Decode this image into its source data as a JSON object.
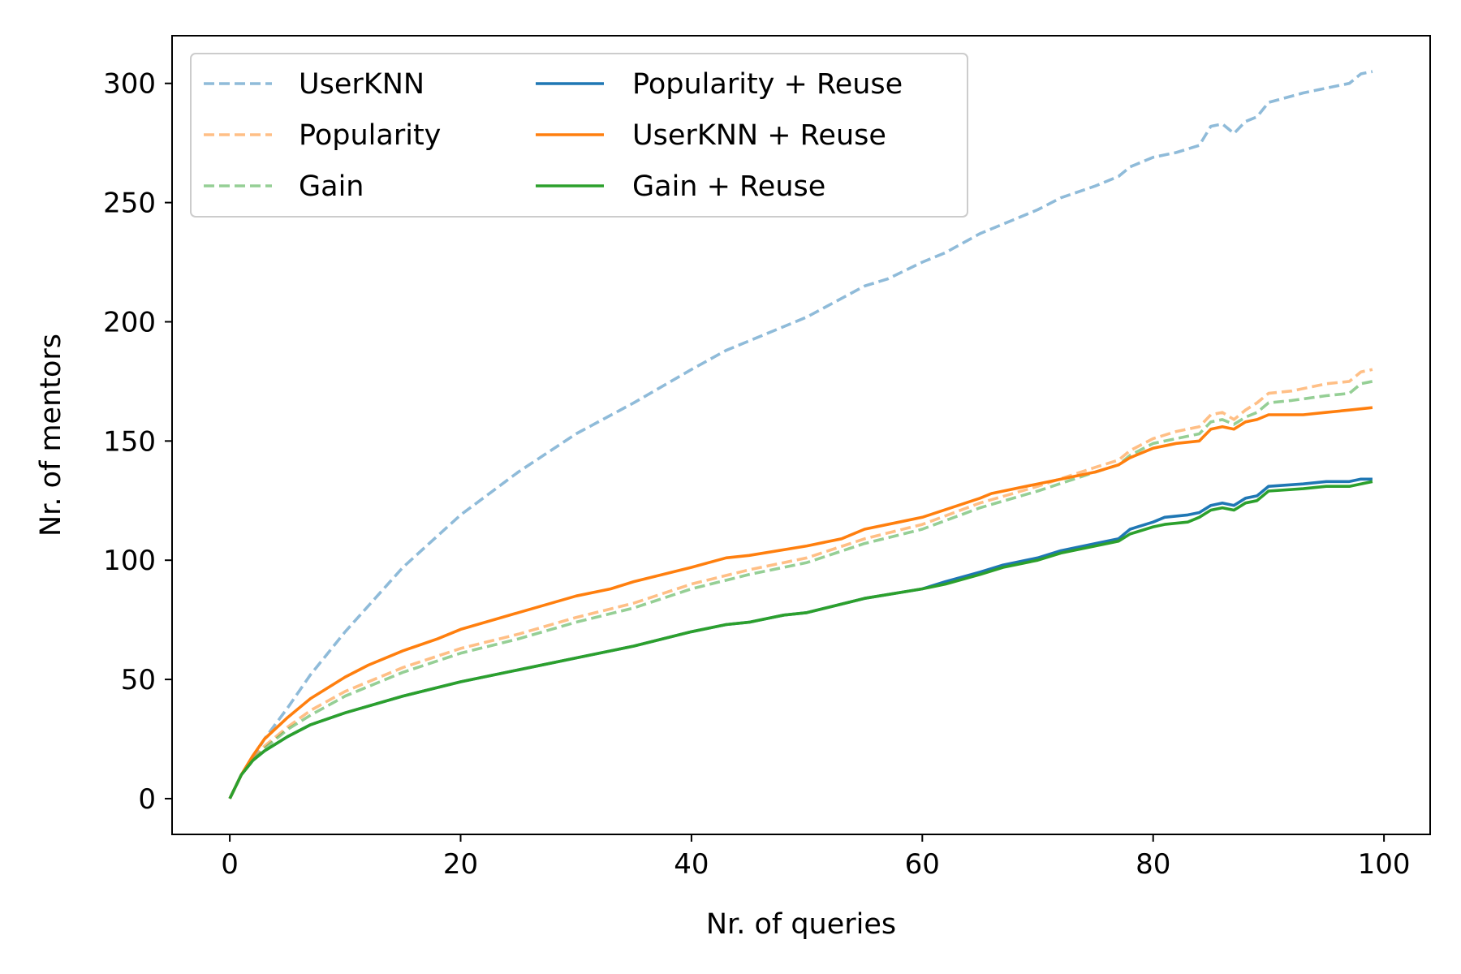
{
  "chart_data": {
    "type": "line",
    "title": "",
    "xlabel": "Nr. of queries",
    "ylabel": "Nr. of mentors",
    "xlim": [
      -5,
      104
    ],
    "ylim": [
      -15,
      320
    ],
    "xticks": [
      0,
      20,
      40,
      60,
      80,
      100
    ],
    "yticks": [
      0,
      50,
      100,
      150,
      200,
      250,
      300
    ],
    "grid": false,
    "legend_position": "top-left",
    "legend_columns": 2,
    "series": [
      {
        "name": "UserKNN",
        "style": "dashed",
        "color": "#1f77b4",
        "opacity": 0.5,
        "points": [
          [
            0,
            0
          ],
          [
            1,
            10
          ],
          [
            2,
            17
          ],
          [
            3,
            25
          ],
          [
            5,
            38
          ],
          [
            7,
            52
          ],
          [
            10,
            70
          ],
          [
            15,
            97
          ],
          [
            20,
            119
          ],
          [
            25,
            137
          ],
          [
            30,
            153
          ],
          [
            35,
            166
          ],
          [
            40,
            180
          ],
          [
            43,
            188
          ],
          [
            45,
            192
          ],
          [
            50,
            202
          ],
          [
            55,
            215
          ],
          [
            57,
            218
          ],
          [
            60,
            225
          ],
          [
            62,
            229
          ],
          [
            65,
            237
          ],
          [
            68,
            243
          ],
          [
            70,
            247
          ],
          [
            72,
            252
          ],
          [
            75,
            257
          ],
          [
            77,
            261
          ],
          [
            78,
            265
          ],
          [
            80,
            269
          ],
          [
            82,
            271
          ],
          [
            84,
            274
          ],
          [
            85,
            282
          ],
          [
            86,
            283
          ],
          [
            87,
            279
          ],
          [
            88,
            284
          ],
          [
            89,
            286
          ],
          [
            90,
            292
          ],
          [
            93,
            296
          ],
          [
            95,
            298
          ],
          [
            97,
            300
          ],
          [
            98,
            304
          ],
          [
            99,
            305
          ]
        ]
      },
      {
        "name": "Popularity",
        "style": "dashed",
        "color": "#ff7f0e",
        "opacity": 0.5,
        "points": [
          [
            0,
            0
          ],
          [
            1,
            10
          ],
          [
            2,
            16
          ],
          [
            3,
            22
          ],
          [
            5,
            30
          ],
          [
            7,
            37
          ],
          [
            10,
            45
          ],
          [
            15,
            55
          ],
          [
            20,
            63
          ],
          [
            25,
            69
          ],
          [
            30,
            76
          ],
          [
            35,
            82
          ],
          [
            40,
            90
          ],
          [
            45,
            96
          ],
          [
            50,
            101
          ],
          [
            55,
            109
          ],
          [
            60,
            115
          ],
          [
            65,
            124
          ],
          [
            70,
            131
          ],
          [
            75,
            139
          ],
          [
            77,
            142
          ],
          [
            78,
            146
          ],
          [
            80,
            151
          ],
          [
            82,
            154
          ],
          [
            84,
            156
          ],
          [
            85,
            161
          ],
          [
            86,
            162
          ],
          [
            87,
            159
          ],
          [
            88,
            163
          ],
          [
            89,
            166
          ],
          [
            90,
            170
          ],
          [
            92,
            171
          ],
          [
            95,
            174
          ],
          [
            97,
            175
          ],
          [
            98,
            179
          ],
          [
            99,
            180
          ]
        ]
      },
      {
        "name": "Gain",
        "style": "dashed",
        "color": "#2ca02c",
        "opacity": 0.5,
        "points": [
          [
            0,
            0
          ],
          [
            1,
            10
          ],
          [
            2,
            16
          ],
          [
            3,
            21
          ],
          [
            5,
            29
          ],
          [
            7,
            35
          ],
          [
            10,
            43
          ],
          [
            15,
            53
          ],
          [
            20,
            61
          ],
          [
            25,
            67
          ],
          [
            30,
            74
          ],
          [
            35,
            80
          ],
          [
            40,
            88
          ],
          [
            45,
            94
          ],
          [
            50,
            99
          ],
          [
            55,
            107
          ],
          [
            60,
            113
          ],
          [
            65,
            122
          ],
          [
            70,
            129
          ],
          [
            75,
            137
          ],
          [
            77,
            140
          ],
          [
            78,
            144
          ],
          [
            80,
            149
          ],
          [
            82,
            151
          ],
          [
            84,
            153
          ],
          [
            85,
            158
          ],
          [
            86,
            159
          ],
          [
            87,
            157
          ],
          [
            88,
            160
          ],
          [
            89,
            162
          ],
          [
            90,
            166
          ],
          [
            92,
            167
          ],
          [
            95,
            169
          ],
          [
            97,
            170
          ],
          [
            98,
            174
          ],
          [
            99,
            175
          ]
        ]
      },
      {
        "name": "Popularity + Reuse",
        "style": "solid",
        "color": "#1f77b4",
        "opacity": 1,
        "points": [
          [
            0,
            0
          ],
          [
            1,
            10
          ],
          [
            2,
            16
          ],
          [
            3,
            20
          ],
          [
            5,
            26
          ],
          [
            7,
            31
          ],
          [
            10,
            36
          ],
          [
            15,
            43
          ],
          [
            20,
            49
          ],
          [
            25,
            54
          ],
          [
            30,
            59
          ],
          [
            35,
            64
          ],
          [
            40,
            70
          ],
          [
            43,
            73
          ],
          [
            45,
            74
          ],
          [
            48,
            77
          ],
          [
            50,
            78
          ],
          [
            55,
            84
          ],
          [
            60,
            88
          ],
          [
            62,
            91
          ],
          [
            65,
            95
          ],
          [
            67,
            98
          ],
          [
            70,
            101
          ],
          [
            72,
            104
          ],
          [
            75,
            107
          ],
          [
            77,
            109
          ],
          [
            78,
            113
          ],
          [
            80,
            116
          ],
          [
            81,
            118
          ],
          [
            83,
            119
          ],
          [
            84,
            120
          ],
          [
            85,
            123
          ],
          [
            86,
            124
          ],
          [
            87,
            123
          ],
          [
            88,
            126
          ],
          [
            89,
            127
          ],
          [
            90,
            131
          ],
          [
            93,
            132
          ],
          [
            95,
            133
          ],
          [
            97,
            133
          ],
          [
            98,
            134
          ],
          [
            99,
            134
          ]
        ]
      },
      {
        "name": "UserKNN + Reuse",
        "style": "solid",
        "color": "#ff7f0e",
        "opacity": 1,
        "points": [
          [
            0,
            0
          ],
          [
            1,
            10
          ],
          [
            2,
            18
          ],
          [
            3,
            25
          ],
          [
            5,
            34
          ],
          [
            7,
            42
          ],
          [
            10,
            51
          ],
          [
            12,
            56
          ],
          [
            15,
            62
          ],
          [
            18,
            67
          ],
          [
            20,
            71
          ],
          [
            25,
            78
          ],
          [
            30,
            85
          ],
          [
            33,
            88
          ],
          [
            35,
            91
          ],
          [
            40,
            97
          ],
          [
            43,
            101
          ],
          [
            45,
            102
          ],
          [
            50,
            106
          ],
          [
            53,
            109
          ],
          [
            55,
            113
          ],
          [
            58,
            116
          ],
          [
            60,
            118
          ],
          [
            65,
            126
          ],
          [
            66,
            128
          ],
          [
            70,
            132
          ],
          [
            75,
            137
          ],
          [
            77,
            140
          ],
          [
            78,
            143
          ],
          [
            80,
            147
          ],
          [
            82,
            149
          ],
          [
            84,
            150
          ],
          [
            85,
            155
          ],
          [
            86,
            156
          ],
          [
            87,
            155
          ],
          [
            88,
            158
          ],
          [
            89,
            159
          ],
          [
            90,
            161
          ],
          [
            93,
            161
          ],
          [
            95,
            162
          ],
          [
            97,
            163
          ],
          [
            99,
            164
          ]
        ]
      },
      {
        "name": "Gain + Reuse",
        "style": "solid",
        "color": "#2ca02c",
        "opacity": 1,
        "points": [
          [
            0,
            0
          ],
          [
            1,
            10
          ],
          [
            2,
            16
          ],
          [
            3,
            20
          ],
          [
            5,
            26
          ],
          [
            7,
            31
          ],
          [
            10,
            36
          ],
          [
            15,
            43
          ],
          [
            20,
            49
          ],
          [
            25,
            54
          ],
          [
            30,
            59
          ],
          [
            35,
            64
          ],
          [
            40,
            70
          ],
          [
            43,
            73
          ],
          [
            45,
            74
          ],
          [
            48,
            77
          ],
          [
            50,
            78
          ],
          [
            55,
            84
          ],
          [
            60,
            88
          ],
          [
            62,
            90
          ],
          [
            65,
            94
          ],
          [
            67,
            97
          ],
          [
            70,
            100
          ],
          [
            72,
            103
          ],
          [
            75,
            106
          ],
          [
            77,
            108
          ],
          [
            78,
            111
          ],
          [
            80,
            114
          ],
          [
            81,
            115
          ],
          [
            83,
            116
          ],
          [
            84,
            118
          ],
          [
            85,
            121
          ],
          [
            86,
            122
          ],
          [
            87,
            121
          ],
          [
            88,
            124
          ],
          [
            89,
            125
          ],
          [
            90,
            129
          ],
          [
            93,
            130
          ],
          [
            95,
            131
          ],
          [
            97,
            131
          ],
          [
            98,
            132
          ],
          [
            99,
            133
          ]
        ]
      }
    ]
  }
}
